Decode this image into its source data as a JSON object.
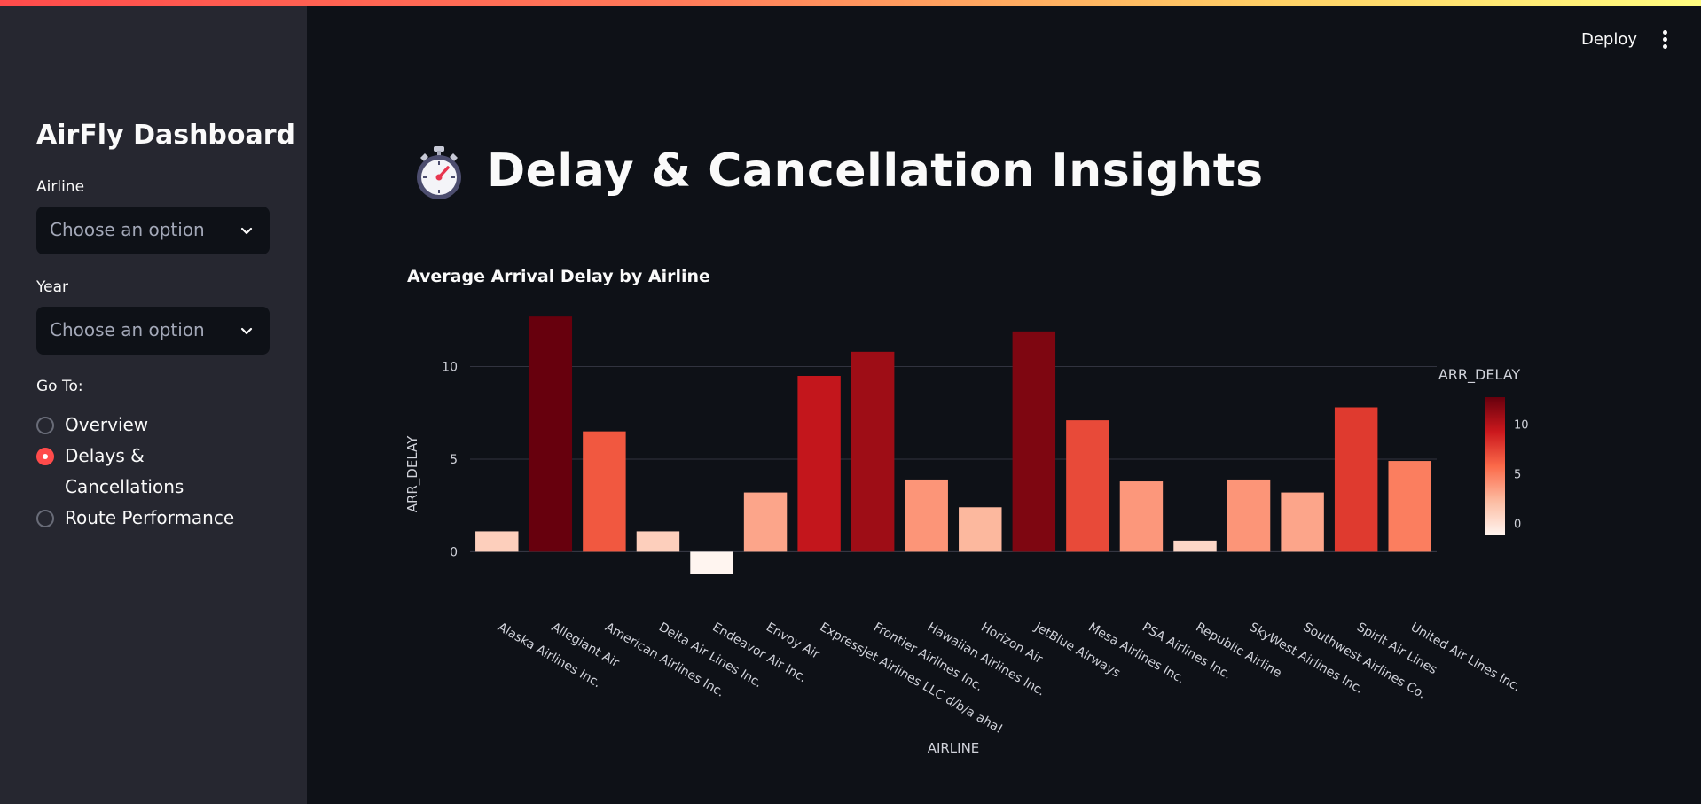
{
  "sidebar": {
    "title": "AirFly Dashboard",
    "airline_label": "Airline",
    "airline_placeholder": "Choose an option",
    "year_label": "Year",
    "year_placeholder": "Choose an option",
    "goto_label": "Go To:",
    "nav": [
      {
        "label": "Overview",
        "selected": false
      },
      {
        "label": "Delays & Cancellations",
        "selected": true
      },
      {
        "label": "Route Performance",
        "selected": false
      }
    ]
  },
  "header": {
    "deploy_label": "Deploy",
    "menu_icon": "kebab-menu-icon"
  },
  "main": {
    "title_icon": "stopwatch-icon",
    "title": "Delay & Cancellation Insights"
  },
  "colors": {
    "accent": "#ff4b4b",
    "background": "#0e1117",
    "sidebar": "#262730"
  },
  "chart_data": {
    "type": "bar",
    "title": "Average Arrival Delay by Airline",
    "xlabel": "AIRLINE",
    "ylabel": "ARR_DELAY",
    "categories": [
      "Alaska Airlines Inc.",
      "Allegiant Air",
      "American Airlines Inc.",
      "Delta Air Lines Inc.",
      "Endeavor Air Inc.",
      "Envoy Air",
      "ExpressJet Airlines LLC d/b/a aha!",
      "Frontier Airlines Inc.",
      "Hawaiian Airlines Inc.",
      "Horizon Air",
      "JetBlue Airways",
      "Mesa Airlines Inc.",
      "PSA Airlines Inc.",
      "Republic Airline",
      "SkyWest Airlines Inc.",
      "Southwest Airlines Co.",
      "Spirit Air Lines",
      "United Air Lines Inc."
    ],
    "values": [
      1.1,
      12.7,
      6.5,
      1.1,
      -1.2,
      3.2,
      9.5,
      10.8,
      3.9,
      2.4,
      11.9,
      7.1,
      3.8,
      0.6,
      3.9,
      3.2,
      7.8,
      4.9
    ],
    "yticks": [
      0,
      5,
      10
    ],
    "ylim": [
      -1.8,
      14
    ],
    "grid": true,
    "colorbar": {
      "title": "ARR_DELAY",
      "ticks": [
        0,
        5,
        10
      ],
      "range": [
        -1.2,
        12.7
      ],
      "colorscale": [
        "#fff5f0",
        "#fcbba1",
        "#fb6a4a",
        "#cb181d",
        "#67000d"
      ]
    }
  }
}
